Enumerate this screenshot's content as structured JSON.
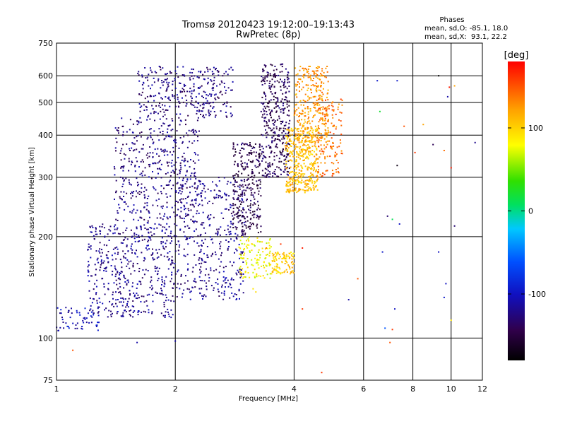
{
  "chart_data": {
    "type": "scatter",
    "title": "Tromsø 20120423 19:12:00–19:13:43",
    "subtitle": "RwPretec (8p)",
    "xlabel": "Frequency [MHz]",
    "ylabel": "Stationary phase Virtual Height [km]",
    "x_scale": "log",
    "y_scale": "log",
    "xlim": [
      1,
      12
    ],
    "ylim": [
      75,
      750
    ],
    "x_ticks": [
      1,
      2,
      4,
      6,
      8,
      10,
      12
    ],
    "y_ticks": [
      75,
      100,
      200,
      300,
      400,
      500,
      600,
      750
    ],
    "x_grid": [
      2,
      4,
      6,
      8,
      10
    ],
    "y_grid": [
      100,
      200,
      300,
      400,
      500,
      600
    ],
    "colorbar": {
      "label": "[deg]",
      "range": [
        -180,
        180
      ],
      "ticks": [
        100,
        0,
        -100
      ]
    },
    "phases_box": {
      "heading": "Phases",
      "line_o": "mean, sd,O: -85.1, 18.0",
      "line_x": "mean, sd,X:  93.1, 22.2"
    },
    "clusters": [
      {
        "x": [
          1.0,
          1.3
        ],
        "y": [
          105,
          125
        ],
        "phase": -105,
        "n": 60
      },
      {
        "x": [
          1.2,
          2.0
        ],
        "y": [
          115,
          220
        ],
        "phase": -120,
        "n": 500
      },
      {
        "x": [
          1.4,
          2.3
        ],
        "y": [
          220,
          450
        ],
        "phase": -125,
        "n": 450
      },
      {
        "x": [
          1.6,
          2.8
        ],
        "y": [
          450,
          640
        ],
        "phase": -125,
        "n": 320
      },
      {
        "x": [
          2.0,
          3.0
        ],
        "y": [
          130,
          300
        ],
        "phase": -120,
        "n": 400
      },
      {
        "x": [
          2.8,
          3.3
        ],
        "y": [
          200,
          380
        ],
        "phase": -145,
        "n": 280
      },
      {
        "x": [
          3.3,
          3.9
        ],
        "y": [
          300,
          650
        ],
        "phase": -140,
        "n": 380
      },
      {
        "x": [
          2.9,
          3.5
        ],
        "y": [
          150,
          200
        ],
        "phase": 80,
        "n": 120
      },
      {
        "x": [
          3.5,
          4.0
        ],
        "y": [
          155,
          180
        ],
        "phase": 100,
        "n": 100
      },
      {
        "x": [
          3.8,
          4.6
        ],
        "y": [
          270,
          420
        ],
        "phase": 110,
        "n": 420
      },
      {
        "x": [
          4.0,
          4.9
        ],
        "y": [
          380,
          640
        ],
        "phase": 125,
        "n": 300
      },
      {
        "x": [
          4.6,
          5.3
        ],
        "y": [
          300,
          520
        ],
        "phase": 140,
        "n": 140
      }
    ],
    "points": [
      {
        "x": 2.0,
        "y": 98,
        "phase": -110
      },
      {
        "x": 1.6,
        "y": 97,
        "phase": -110
      },
      {
        "x": 1.1,
        "y": 92,
        "phase": 150
      },
      {
        "x": 3.15,
        "y": 140,
        "phase": 90
      },
      {
        "x": 3.2,
        "y": 137,
        "phase": 95
      },
      {
        "x": 6.5,
        "y": 580,
        "phase": -95
      },
      {
        "x": 6.6,
        "y": 470,
        "phase": 20
      },
      {
        "x": 7.3,
        "y": 580,
        "phase": -95
      },
      {
        "x": 7.6,
        "y": 425,
        "phase": 150
      },
      {
        "x": 8.5,
        "y": 430,
        "phase": 120
      },
      {
        "x": 9.3,
        "y": 600,
        "phase": -180
      },
      {
        "x": 9.8,
        "y": 520,
        "phase": -110
      },
      {
        "x": 9.9,
        "y": 555,
        "phase": 170
      },
      {
        "x": 10.2,
        "y": 560,
        "phase": 120
      },
      {
        "x": 11.5,
        "y": 380,
        "phase": -120
      },
      {
        "x": 8.1,
        "y": 355,
        "phase": 160
      },
      {
        "x": 9.0,
        "y": 375,
        "phase": -140
      },
      {
        "x": 9.6,
        "y": 360,
        "phase": 140
      },
      {
        "x": 7.3,
        "y": 325,
        "phase": -170
      },
      {
        "x": 10.0,
        "y": 320,
        "phase": 170
      },
      {
        "x": 6.9,
        "y": 230,
        "phase": -130
      },
      {
        "x": 7.1,
        "y": 225,
        "phase": 10
      },
      {
        "x": 7.4,
        "y": 218,
        "phase": -100
      },
      {
        "x": 10.2,
        "y": 215,
        "phase": -130
      },
      {
        "x": 6.7,
        "y": 180,
        "phase": -95
      },
      {
        "x": 9.3,
        "y": 180,
        "phase": -100
      },
      {
        "x": 5.8,
        "y": 150,
        "phase": 150
      },
      {
        "x": 9.7,
        "y": 145,
        "phase": -100
      },
      {
        "x": 5.5,
        "y": 130,
        "phase": -110
      },
      {
        "x": 9.6,
        "y": 132,
        "phase": -95
      },
      {
        "x": 4.2,
        "y": 122,
        "phase": 160
      },
      {
        "x": 7.2,
        "y": 122,
        "phase": -100
      },
      {
        "x": 10.0,
        "y": 113,
        "phase": 90
      },
      {
        "x": 6.8,
        "y": 107,
        "phase": -60
      },
      {
        "x": 7.1,
        "y": 106,
        "phase": 160
      },
      {
        "x": 7.0,
        "y": 97,
        "phase": 150
      },
      {
        "x": 4.7,
        "y": 79,
        "phase": 160
      },
      {
        "x": 3.4,
        "y": 185,
        "phase": 140
      },
      {
        "x": 4.2,
        "y": 185,
        "phase": 170
      },
      {
        "x": 3.7,
        "y": 190,
        "phase": 160
      }
    ]
  }
}
